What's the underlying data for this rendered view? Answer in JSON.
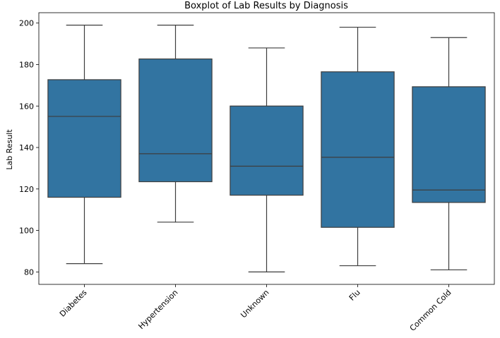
{
  "chart_data": {
    "type": "boxplot",
    "title": "Boxplot of Lab Results by Diagnosis",
    "xlabel": "",
    "ylabel": "Lab Result",
    "ylim": [
      74,
      205
    ],
    "yticks": [
      80,
      100,
      120,
      140,
      160,
      180,
      200
    ],
    "grid": false,
    "box_color": "#3274a1",
    "line_color": "#3d3d3d",
    "categories": [
      "Diabetes",
      "Hypertension",
      "Unknown",
      "Flu",
      "Common Cold"
    ],
    "boxes": [
      {
        "category": "Diabetes",
        "min": 84,
        "q1": 116,
        "median": 155,
        "q3": 172.7,
        "max": 199
      },
      {
        "category": "Hypertension",
        "min": 104,
        "q1": 123.5,
        "median": 137,
        "q3": 182.7,
        "max": 199
      },
      {
        "category": "Unknown",
        "min": 80,
        "q1": 117,
        "median": 131,
        "q3": 160,
        "max": 188
      },
      {
        "category": "Flu",
        "min": 83,
        "q1": 101.5,
        "median": 135.3,
        "q3": 176.5,
        "max": 198
      },
      {
        "category": "Common Cold",
        "min": 81,
        "q1": 113.5,
        "median": 119.5,
        "q3": 169.3,
        "max": 193
      }
    ]
  }
}
